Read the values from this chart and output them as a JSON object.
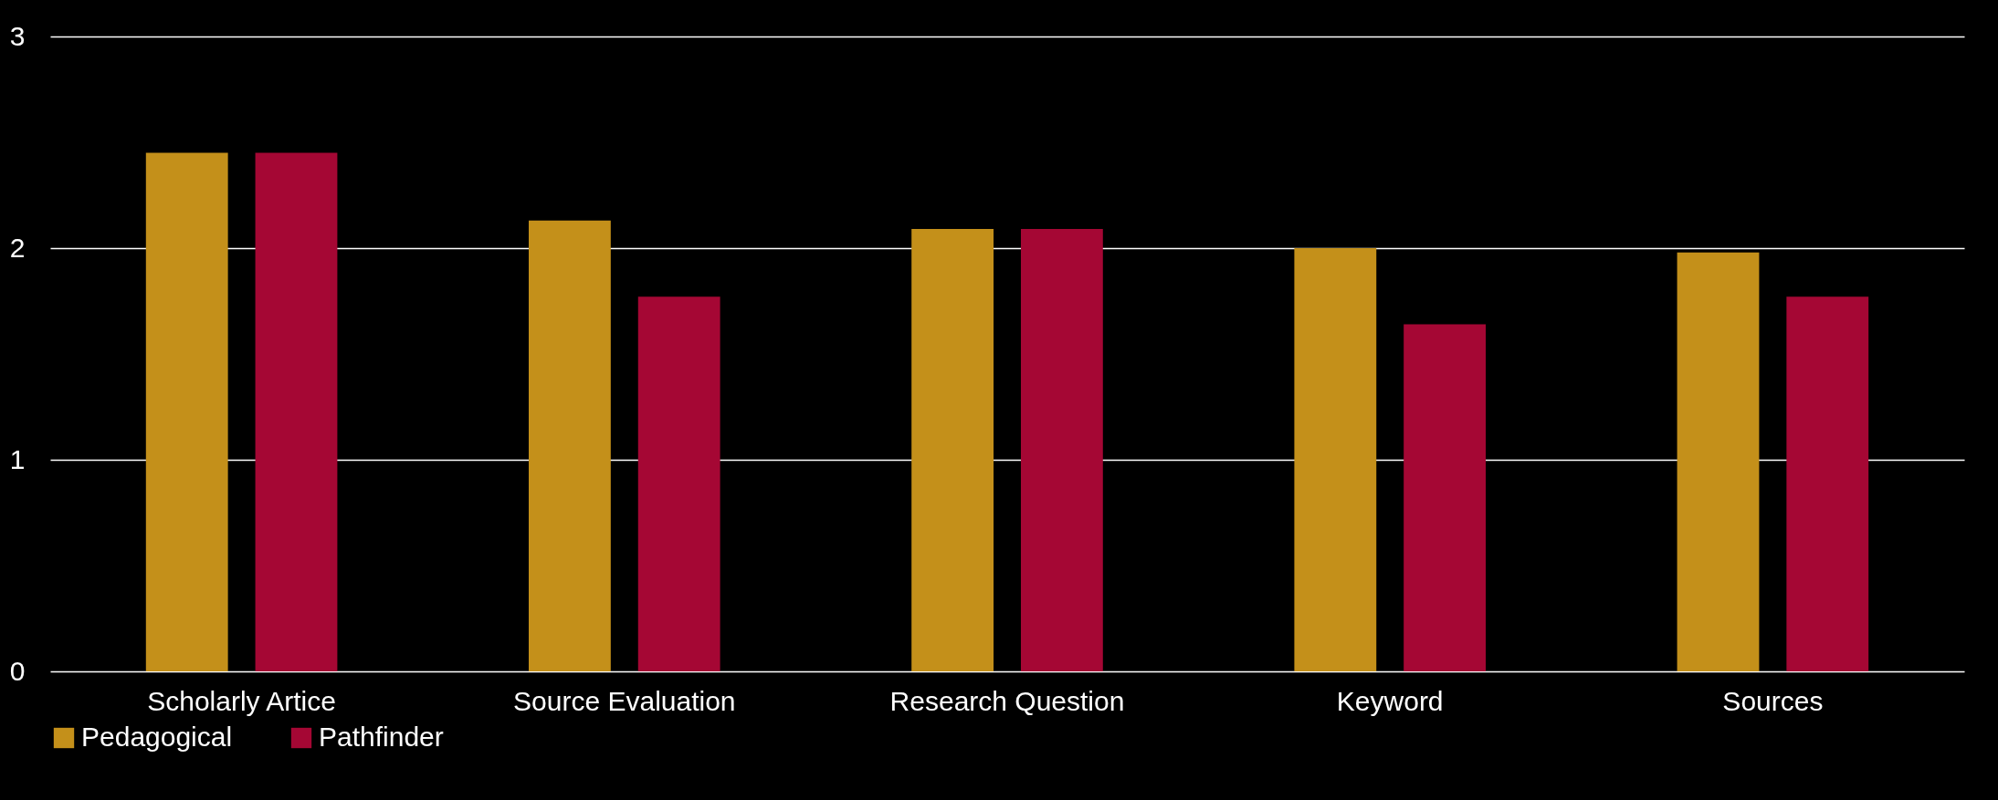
{
  "chart_data": {
    "type": "bar",
    "categories": [
      "Scholarly Artice",
      "Source Evaluation",
      "Research Question",
      "Keyword",
      "Sources"
    ],
    "series": [
      {
        "name": "Pedagogical",
        "color": "#c4901a",
        "values": [
          2.45,
          2.13,
          2.09,
          2.0,
          1.98
        ]
      },
      {
        "name": "Pathfinder",
        "color": "#a50734",
        "values": [
          2.45,
          1.77,
          2.09,
          1.64,
          1.77
        ]
      }
    ],
    "ylim": [
      0,
      3
    ],
    "yticks": [
      0,
      1,
      2,
      3
    ],
    "grid": "y",
    "legend": "bottom"
  }
}
